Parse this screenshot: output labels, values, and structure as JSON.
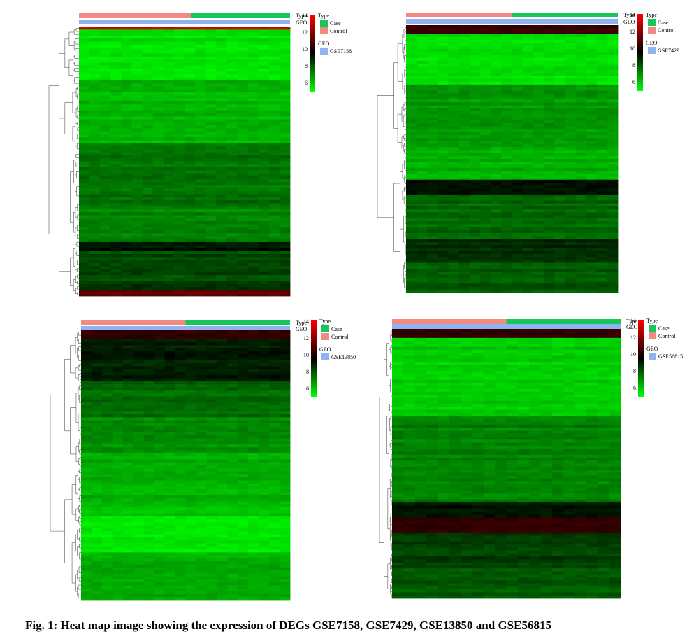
{
  "chart_data": [
    {
      "type": "heatmap",
      "annotation_rows": [
        "Type",
        "GEO"
      ],
      "type_legend_title": "Type",
      "geo_legend_title": "GEO",
      "groups": [
        {
          "name": "Case",
          "color": "#17c65a"
        },
        {
          "name": "Control",
          "color": "#f28a82"
        }
      ],
      "geo_series": "GSE7158",
      "geo_color": "#8fb2f1",
      "scale_ticks": [
        14,
        12,
        10,
        8,
        6
      ],
      "color_scale": [
        "#00ff00",
        "#000000",
        "#ff0000"
      ],
      "column_order": [
        "Control",
        "Case"
      ]
    },
    {
      "type": "heatmap",
      "annotation_rows": [
        "Type",
        "GEO"
      ],
      "type_legend_title": "Type",
      "geo_legend_title": "GEO",
      "groups": [
        {
          "name": "Case",
          "color": "#17c65a"
        },
        {
          "name": "Control",
          "color": "#f28a82"
        }
      ],
      "geo_series": "GSE7429",
      "geo_color": "#8fb2f1",
      "scale_ticks": [
        14,
        12,
        10,
        8,
        6
      ],
      "color_scale": [
        "#00ff00",
        "#000000",
        "#ff0000"
      ],
      "column_order": [
        "Control",
        "Case"
      ]
    },
    {
      "type": "heatmap",
      "annotation_rows": [
        "Type",
        "GEO"
      ],
      "type_legend_title": "Type",
      "geo_legend_title": "GEO",
      "groups": [
        {
          "name": "Case",
          "color": "#17c65a"
        },
        {
          "name": "Control",
          "color": "#f28a82"
        }
      ],
      "geo_series": "GSE13850",
      "geo_color": "#8fb2f1",
      "scale_ticks": [
        14,
        12,
        10,
        8,
        6
      ],
      "color_scale": [
        "#00ff00",
        "#000000",
        "#ff0000"
      ],
      "column_order": [
        "Control",
        "Case"
      ]
    },
    {
      "type": "heatmap",
      "annotation_rows": [
        "Type",
        "GEO"
      ],
      "type_legend_title": "Type",
      "geo_legend_title": "GEO",
      "groups": [
        {
          "name": "Case",
          "color": "#17c65a"
        },
        {
          "name": "Control",
          "color": "#f28a82"
        }
      ],
      "geo_series": "GSE56815",
      "geo_color": "#8fb2f1",
      "scale_ticks": [
        14,
        12,
        10,
        8,
        6
      ],
      "color_scale": [
        "#00ff00",
        "#000000",
        "#ff0000"
      ],
      "column_order": [
        "Control",
        "Case"
      ]
    }
  ],
  "figure": {
    "caption": "Fig. 1: Heat map image showing the expression of DEGs GSE7158, GSE7429, GSE13850 and GSE56815"
  }
}
